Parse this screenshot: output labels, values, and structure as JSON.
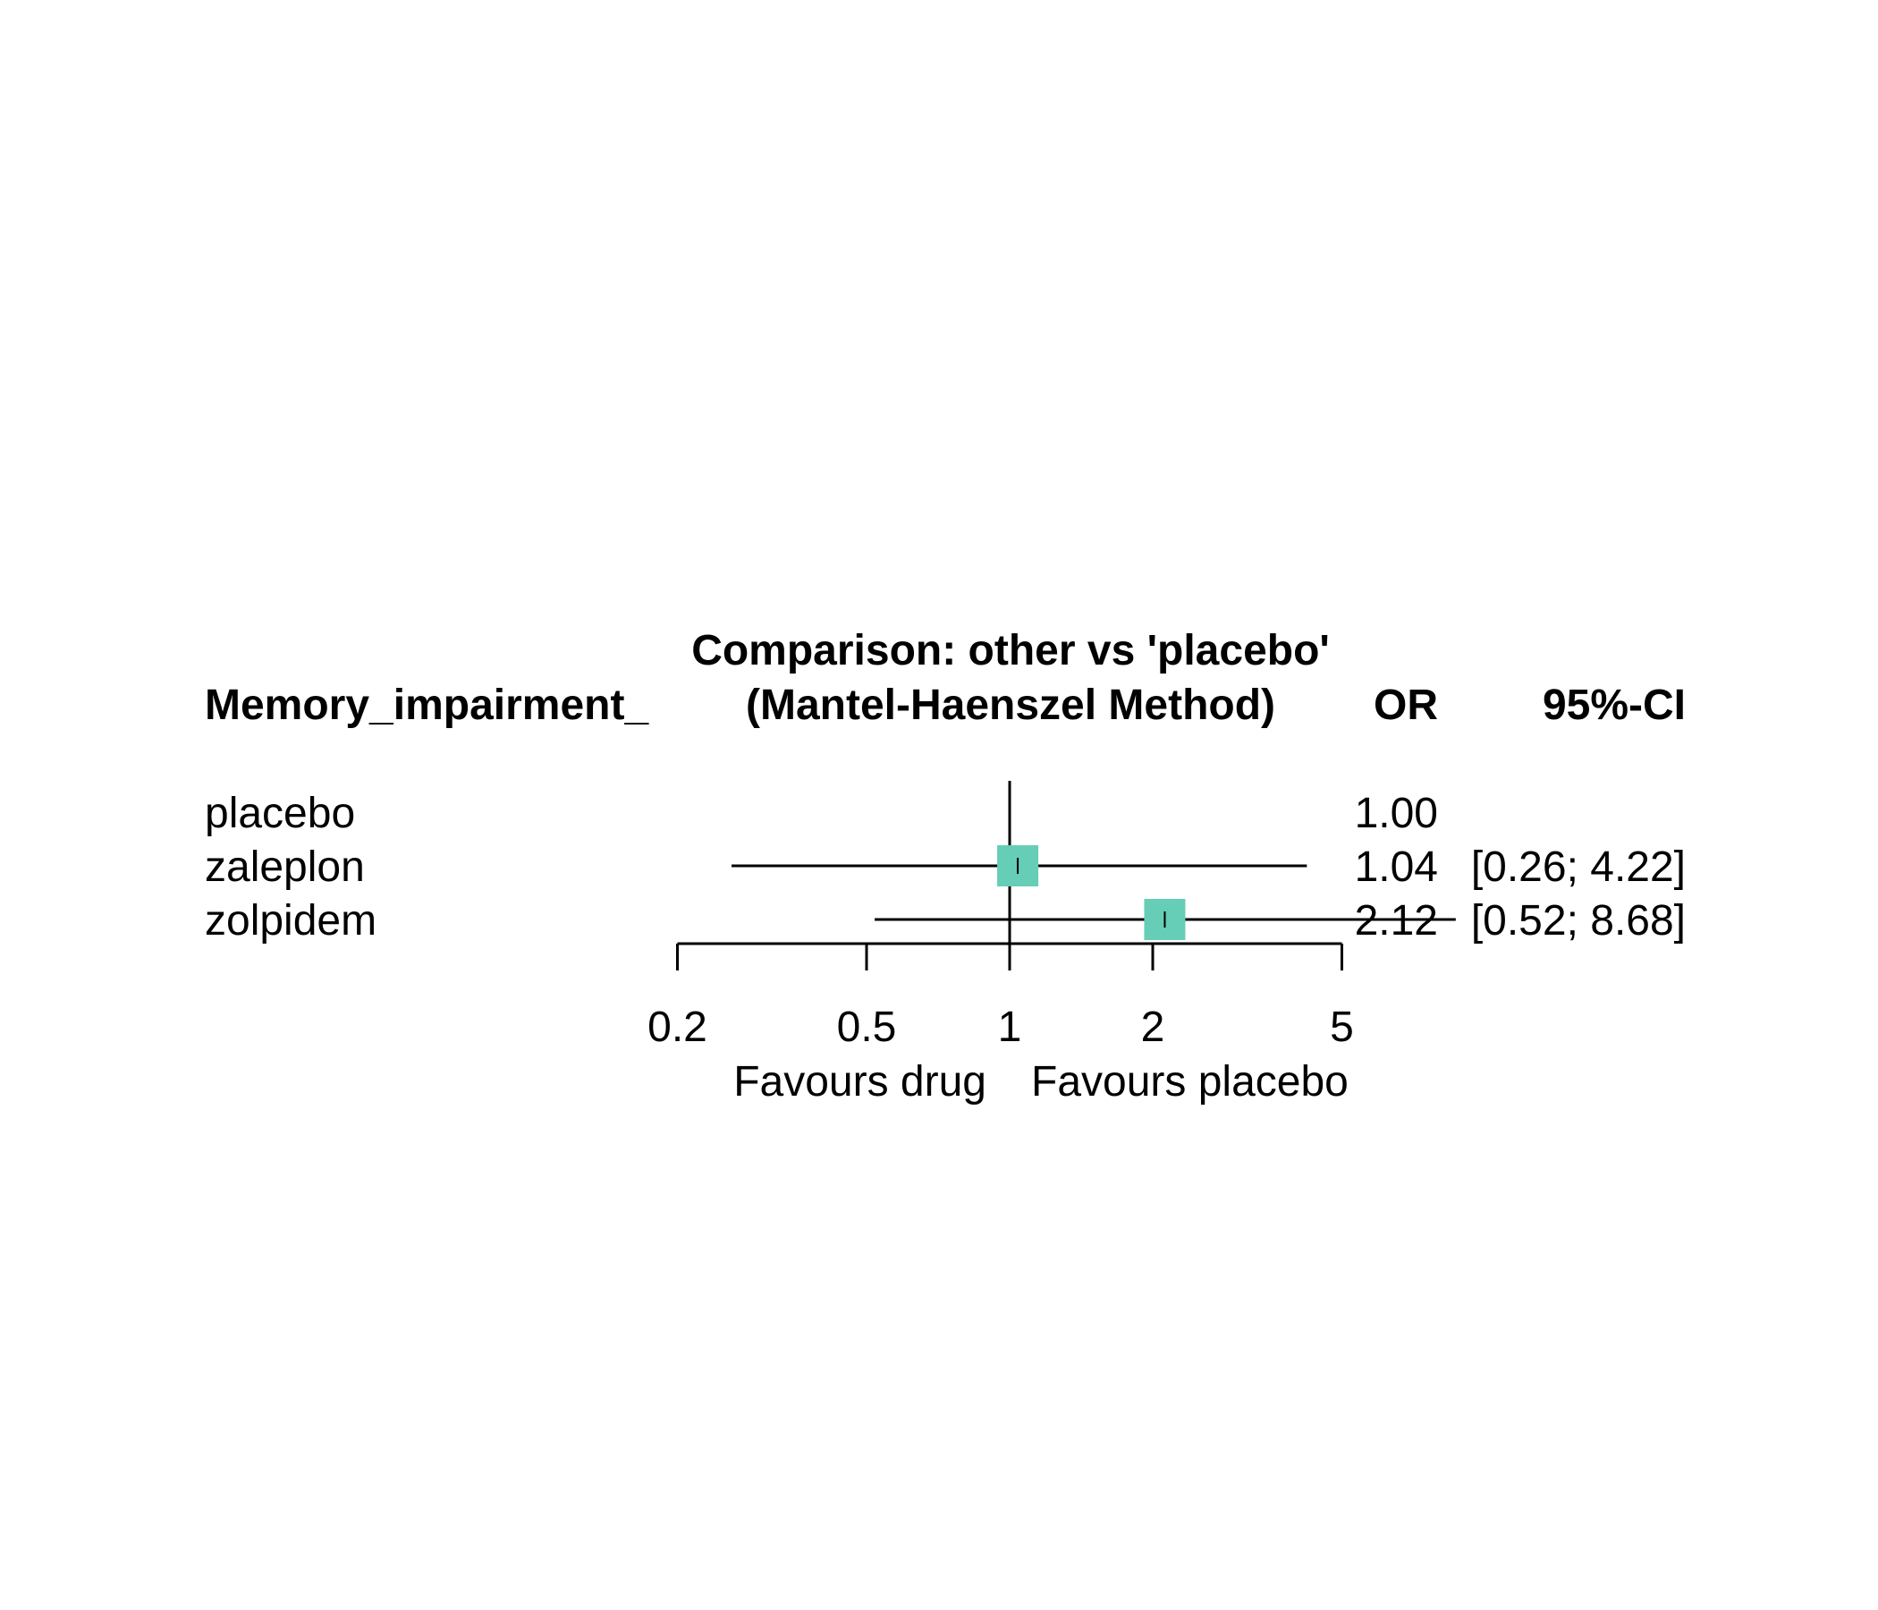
{
  "chart_data": {
    "type": "forest",
    "title_line1": "Comparison: other vs 'placebo'",
    "title_line2": "(Mantel-Haenszel Method)",
    "outcome_label": "Memory_impairment_",
    "col_or_header": "OR",
    "col_ci_header": "95%-CI",
    "rows": [
      {
        "label": "placebo",
        "or": 1.0,
        "lower": null,
        "upper": null,
        "or_text": "1.00",
        "ci_text": ""
      },
      {
        "label": "zaleplon",
        "or": 1.04,
        "lower": 0.26,
        "upper": 4.22,
        "or_text": "1.04",
        "ci_text": "[0.26; 4.22]"
      },
      {
        "label": "zolpidem",
        "or": 2.12,
        "lower": 0.52,
        "upper": 8.68,
        "or_text": "2.12",
        "ci_text": "[0.52; 8.68]"
      }
    ],
    "x_scale": "log",
    "x_ticks": [
      0.2,
      0.5,
      1,
      2,
      5
    ],
    "x_tick_labels": [
      "0.2",
      "0.5",
      "1",
      "2",
      "5"
    ],
    "reference_line": 1,
    "xlabel_left": "Favours drug",
    "xlabel_right": "Favours placebo",
    "marker_color": "#66CDB6"
  }
}
